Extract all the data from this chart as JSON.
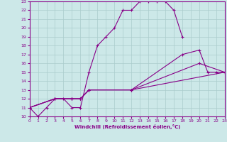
{
  "xlabel": "Windchill (Refroidissement éolien,°C)",
  "bg_color": "#cce8e8",
  "line_color": "#880088",
  "grid_color": "#aacccc",
  "xlim": [
    0,
    23
  ],
  "ylim": [
    10,
    23
  ],
  "xticks": [
    0,
    1,
    2,
    3,
    4,
    5,
    6,
    7,
    8,
    9,
    10,
    11,
    12,
    13,
    14,
    15,
    16,
    17,
    18,
    19,
    20,
    21,
    22,
    23
  ],
  "yticks": [
    10,
    11,
    12,
    13,
    14,
    15,
    16,
    17,
    18,
    19,
    20,
    21,
    22,
    23
  ],
  "curves": [
    {
      "x": [
        0,
        1,
        2,
        3,
        4,
        5,
        6,
        7,
        8,
        9,
        10,
        11,
        12,
        13,
        14,
        15,
        16,
        17,
        18
      ],
      "y": [
        11,
        10,
        11,
        12,
        12,
        11,
        11,
        15,
        18,
        19,
        20,
        22,
        22,
        23,
        23,
        23,
        23,
        22,
        19
      ]
    },
    {
      "x": [
        0,
        3,
        5,
        6,
        7,
        12,
        18,
        20,
        21,
        22,
        23
      ],
      "y": [
        11,
        12,
        12,
        12,
        13,
        13,
        17,
        17.5,
        15,
        15,
        15
      ]
    },
    {
      "x": [
        0,
        3,
        5,
        6,
        7,
        12,
        20,
        23
      ],
      "y": [
        11,
        12,
        12,
        12,
        13,
        13,
        16,
        15
      ]
    },
    {
      "x": [
        0,
        3,
        5,
        6,
        7,
        12,
        23
      ],
      "y": [
        11,
        12,
        12,
        12,
        13,
        13,
        15
      ]
    }
  ]
}
